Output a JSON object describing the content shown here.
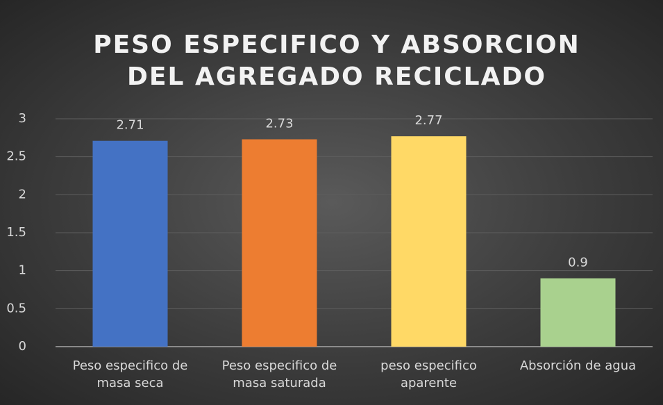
{
  "chart_data": {
    "type": "bar",
    "title": "PESO ESPECIFICO Y ABSORCION DEL AGREGADO RECICLADO",
    "categories": [
      "Peso especifico de masa seca",
      "Peso especifico de masa saturada",
      "peso especifico aparente",
      "Absorción de agua"
    ],
    "values": [
      2.71,
      2.73,
      2.77,
      0.9
    ],
    "colors": [
      "#4472c4",
      "#ed7d31",
      "#ffd966",
      "#a9d18e"
    ],
    "ylim": [
      0,
      3
    ],
    "yticks": [
      0,
      0.5,
      1,
      1.5,
      2,
      2.5,
      3
    ],
    "grid": true
  }
}
